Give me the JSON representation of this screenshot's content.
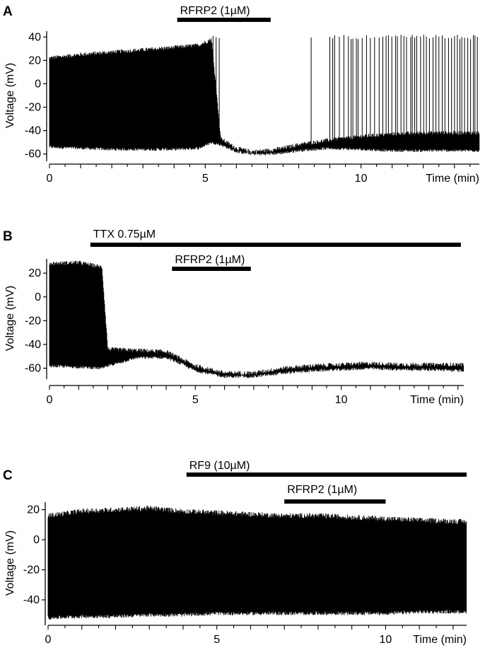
{
  "figure": {
    "panels": [
      {
        "label": "A"
      },
      {
        "label": "B"
      },
      {
        "label": "C"
      }
    ]
  },
  "chart_data": [
    {
      "panel": "A",
      "type": "line",
      "title": "",
      "xlabel": "Time (min)",
      "ylabel": "Voltage (mV)",
      "xlim": [
        0,
        13.8
      ],
      "ylim": [
        -65,
        45
      ],
      "xticks": [
        0,
        5,
        10
      ],
      "yticks": [
        -60,
        -40,
        -20,
        0,
        20,
        40
      ],
      "application_bars": [
        {
          "label": "RFRP2 (1µM)",
          "start": 4.1,
          "end": 7.1
        }
      ],
      "trace": {
        "description_points": [
          {
            "t": 0,
            "upper": 22,
            "lower": -54
          },
          {
            "t": 1,
            "upper": 25,
            "lower": -55
          },
          {
            "t": 2,
            "upper": 27,
            "lower": -56
          },
          {
            "t": 3,
            "upper": 29,
            "lower": -56
          },
          {
            "t": 4,
            "upper": 31,
            "lower": -56
          },
          {
            "t": 4.8,
            "upper": 33,
            "lower": -55
          },
          {
            "t": 5.2,
            "upper": 38,
            "lower": -50
          },
          {
            "t": 5.5,
            "upper": -47,
            "lower": -52
          },
          {
            "t": 6,
            "upper": -55,
            "lower": -58
          },
          {
            "t": 6.5,
            "upper": -58,
            "lower": -60
          },
          {
            "t": 7,
            "upper": -57,
            "lower": -60
          },
          {
            "t": 7.5,
            "upper": -55,
            "lower": -59
          },
          {
            "t": 8,
            "upper": -52,
            "lower": -57
          },
          {
            "t": 9,
            "upper": -48,
            "lower": -55
          },
          {
            "t": 10,
            "upper": -45,
            "lower": -56
          },
          {
            "t": 11,
            "upper": -43,
            "lower": -57
          },
          {
            "t": 12,
            "upper": -42,
            "lower": -57
          },
          {
            "t": 13,
            "upper": -42,
            "lower": -57
          },
          {
            "t": 13.8,
            "upper": -42,
            "lower": -57
          }
        ],
        "spike_peak": 42,
        "sparse_spikes": [
          5.25,
          5.35,
          5.45,
          8.4
        ],
        "dense_spikes_range": [
          9.0,
          13.8
        ]
      }
    },
    {
      "panel": "B",
      "type": "line",
      "title": "",
      "xlabel": "Time (min)",
      "ylabel": "Voltage (mV)",
      "xlim": [
        0,
        14.2
      ],
      "ylim": [
        -68,
        32
      ],
      "xticks": [
        0,
        5,
        10
      ],
      "yticks": [
        -60,
        -40,
        -20,
        0,
        20
      ],
      "application_bars": [
        {
          "label": "TTX 0.75µM",
          "start": 1.4,
          "end": 14.1
        },
        {
          "label": "RFRP2 (1µM)",
          "start": 4.2,
          "end": 6.9
        }
      ],
      "trace": {
        "description_points": [
          {
            "t": 0,
            "upper": 28,
            "lower": -58
          },
          {
            "t": 1,
            "upper": 29,
            "lower": -59
          },
          {
            "t": 1.8,
            "upper": 25,
            "lower": -60
          },
          {
            "t": 2.0,
            "upper": -44,
            "lower": -58
          },
          {
            "t": 3,
            "upper": -45,
            "lower": -51
          },
          {
            "t": 4,
            "upper": -46,
            "lower": -51
          },
          {
            "t": 4.5,
            "upper": -52,
            "lower": -56
          },
          {
            "t": 5,
            "upper": -58,
            "lower": -62
          },
          {
            "t": 6,
            "upper": -64,
            "lower": -67
          },
          {
            "t": 7,
            "upper": -64,
            "lower": -67
          },
          {
            "t": 8,
            "upper": -60,
            "lower": -64
          },
          {
            "t": 9,
            "upper": -58,
            "lower": -62
          },
          {
            "t": 10,
            "upper": -57,
            "lower": -61
          },
          {
            "t": 11,
            "upper": -56,
            "lower": -60
          },
          {
            "t": 12,
            "upper": -57,
            "lower": -61
          },
          {
            "t": 13,
            "upper": -57,
            "lower": -61
          },
          {
            "t": 14.2,
            "upper": -57,
            "lower": -62
          }
        ]
      }
    },
    {
      "panel": "C",
      "type": "line",
      "title": "",
      "xlabel": "Time (min)",
      "ylabel": "Voltage (mV)",
      "xlim": [
        0,
        12.4
      ],
      "ylim": [
        -56,
        25
      ],
      "xticks": [
        0,
        5,
        10
      ],
      "yticks": [
        -40,
        -20,
        0,
        20
      ],
      "application_bars": [
        {
          "label": "RF9 (10µM)",
          "start": 4.1,
          "end": 12.4
        },
        {
          "label": "RFRP2 (1µM)",
          "start": 7.0,
          "end": 10.0
        }
      ],
      "trace": {
        "description_points": [
          {
            "t": 0,
            "upper": 16,
            "lower": -52
          },
          {
            "t": 1,
            "upper": 19,
            "lower": -51
          },
          {
            "t": 2,
            "upper": 20,
            "lower": -51
          },
          {
            "t": 3,
            "upper": 21,
            "lower": -50
          },
          {
            "t": 4,
            "upper": 19,
            "lower": -50
          },
          {
            "t": 5,
            "upper": 18,
            "lower": -49
          },
          {
            "t": 6,
            "upper": 17,
            "lower": -49
          },
          {
            "t": 7,
            "upper": 16,
            "lower": -49
          },
          {
            "t": 8,
            "upper": 16,
            "lower": -49
          },
          {
            "t": 9,
            "upper": 15,
            "lower": -49
          },
          {
            "t": 10,
            "upper": 14,
            "lower": -49
          },
          {
            "t": 11,
            "upper": 13,
            "lower": -48
          },
          {
            "t": 12.4,
            "upper": 12,
            "lower": -48
          }
        ]
      }
    }
  ]
}
